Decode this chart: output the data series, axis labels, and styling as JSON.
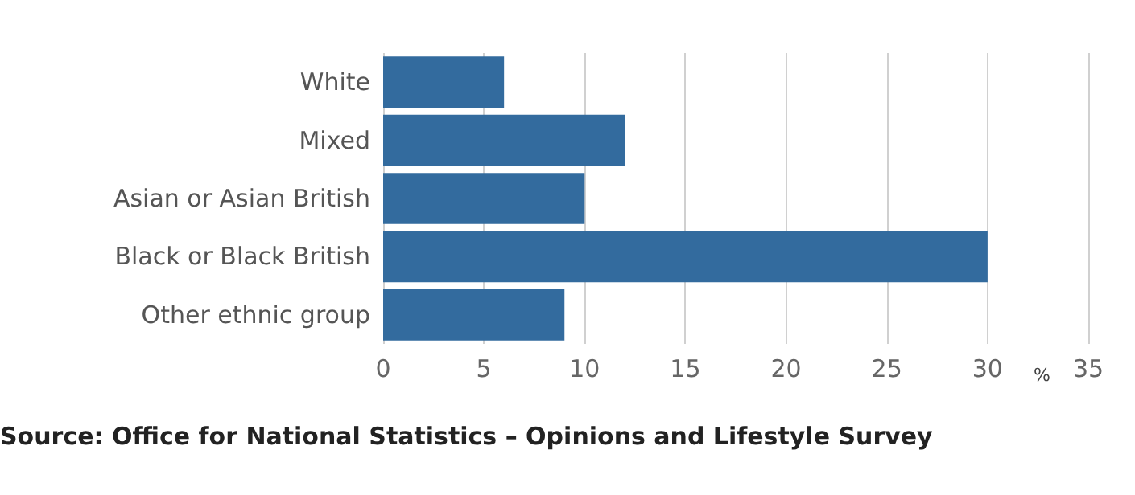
{
  "chart_data": {
    "type": "bar",
    "orientation": "horizontal",
    "categories": [
      "White",
      "Mixed",
      "Asian or Asian British",
      "Black or Black British",
      "Other ethnic group"
    ],
    "values": [
      6,
      12,
      10,
      30,
      9
    ],
    "color": "#336b9e",
    "xlim": [
      0,
      35
    ],
    "xticks": [
      0,
      5,
      10,
      15,
      20,
      25,
      30,
      35
    ],
    "xlabel": "%",
    "grid": "x",
    "annotations": [
      "Source: Office for National Statistics – Opinions and Lifestyle Survey"
    ]
  }
}
